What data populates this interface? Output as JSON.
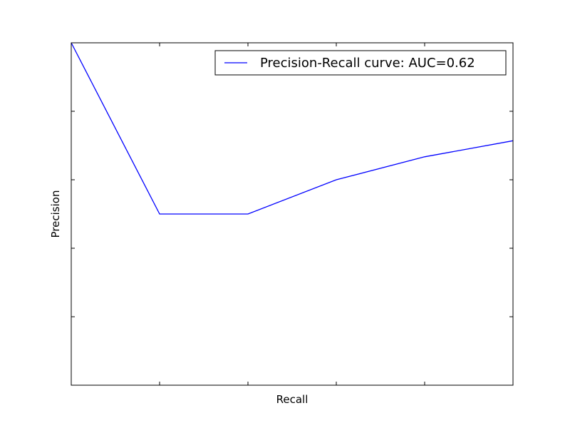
{
  "chart_data": {
    "type": "line",
    "title": "",
    "xlabel": "Recall",
    "ylabel": "Precision",
    "xlim": [
      0,
      1
    ],
    "ylim": [
      0,
      1
    ],
    "x_ticks": [
      0,
      0.2,
      0.4,
      0.6,
      0.8,
      1.0
    ],
    "y_ticks": [
      0,
      0.2,
      0.4,
      0.6,
      0.8,
      1.0
    ],
    "tick_labels_visible": false,
    "grid": false,
    "legend_position": "top-right",
    "series": [
      {
        "name": "Precision-Recall curve: AUC=0.62",
        "color": "#0000ff",
        "x": [
          0.0,
          0.2,
          0.4,
          0.6,
          0.8,
          1.0
        ],
        "y": [
          1.0,
          0.5,
          0.5,
          0.6,
          0.667,
          0.714
        ]
      }
    ]
  }
}
